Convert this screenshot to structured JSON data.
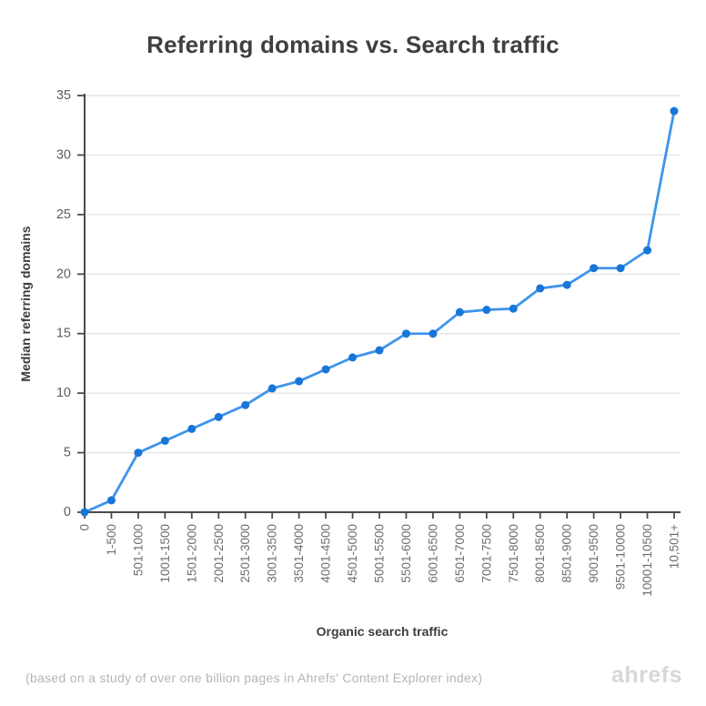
{
  "page": {
    "footnote": "(based on a study of over one billion pages in Ahrefs' Content Explorer index)",
    "brand": "ahrefs"
  },
  "colors": {
    "line": "#3E94EC",
    "point": "#1976D8",
    "grid": "#E4E4E4",
    "axis": "#4A4A4A",
    "title_text": "#3F3F3F",
    "y_tick_text": "#5D5D5D",
    "x_tick_text": "#6F6F6F",
    "axis_label_text": "#3D3D3D",
    "muted_text": "#B5B5B5",
    "brand_text": "#D7D7D7",
    "background": "#FFFFFF"
  },
  "chart_data": {
    "type": "line",
    "title": "Referring domains vs. Search traffic",
    "xlabel": "Organic search traffic",
    "ylabel": "Median referring domains",
    "categories": [
      "0",
      "1-500",
      "501-1000",
      "1001-1500",
      "1501-2000",
      "2001-2500",
      "2501-3000",
      "3001-3500",
      "3501-4000",
      "4001-4500",
      "4501-5000",
      "5001-5500",
      "5501-6000",
      "6001-6500",
      "6501-7000",
      "7001-7500",
      "7501-8000",
      "8001-8500",
      "8501-9000",
      "9001-9500",
      "9501-10000",
      "10001-10500",
      "10,501+"
    ],
    "values": [
      0,
      1,
      5,
      6,
      7,
      8,
      9,
      10.4,
      11,
      12,
      13,
      13.6,
      15,
      15,
      16.8,
      17,
      17.1,
      18.8,
      19.1,
      20.5,
      20.5,
      22,
      33.7
    ],
    "ylim": [
      0,
      35
    ],
    "yticks": [
      0,
      5,
      10,
      15,
      20,
      25,
      30,
      35
    ],
    "grid": "horizontal",
    "legend": "none",
    "marker": "circle"
  }
}
